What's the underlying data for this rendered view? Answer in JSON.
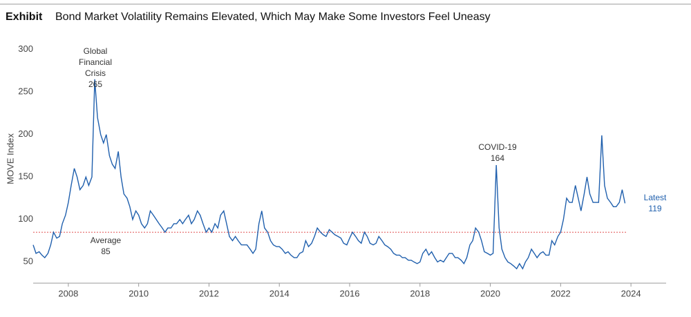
{
  "chart_data": {
    "type": "line",
    "exhibit": "Exhibit",
    "title": "Bond Market Volatility Remains Elevated, Which May Make Some Investors Feel Uneasy",
    "y_label": "MOVE Index",
    "xlim": [
      2007,
      2025
    ],
    "xticks": [
      2008,
      2010,
      2012,
      2014,
      2016,
      2018,
      2020,
      2022,
      2024
    ],
    "ylim": [
      25,
      325
    ],
    "yticks": [
      50,
      100,
      150,
      200,
      250,
      300
    ],
    "grid": false,
    "x": [
      2007.0,
      2007.08,
      2007.17,
      2007.25,
      2007.33,
      2007.42,
      2007.5,
      2007.58,
      2007.67,
      2007.75,
      2007.83,
      2007.92,
      2008.0,
      2008.08,
      2008.17,
      2008.25,
      2008.33,
      2008.42,
      2008.5,
      2008.58,
      2008.67,
      2008.75,
      2008.83,
      2008.92,
      2009.0,
      2009.08,
      2009.17,
      2009.25,
      2009.33,
      2009.42,
      2009.5,
      2009.58,
      2009.67,
      2009.75,
      2009.83,
      2009.92,
      2010.0,
      2010.08,
      2010.17,
      2010.25,
      2010.33,
      2010.42,
      2010.5,
      2010.58,
      2010.67,
      2010.75,
      2010.83,
      2010.92,
      2011.0,
      2011.08,
      2011.17,
      2011.25,
      2011.33,
      2011.42,
      2011.5,
      2011.58,
      2011.67,
      2011.75,
      2011.83,
      2011.92,
      2012.0,
      2012.08,
      2012.17,
      2012.25,
      2012.33,
      2012.42,
      2012.5,
      2012.58,
      2012.67,
      2012.75,
      2012.83,
      2012.92,
      2013.0,
      2013.08,
      2013.17,
      2013.25,
      2013.33,
      2013.42,
      2013.5,
      2013.58,
      2013.67,
      2013.75,
      2013.83,
      2013.92,
      2014.0,
      2014.08,
      2014.17,
      2014.25,
      2014.33,
      2014.42,
      2014.5,
      2014.58,
      2014.67,
      2014.75,
      2014.83,
      2014.92,
      2015.0,
      2015.08,
      2015.17,
      2015.25,
      2015.33,
      2015.42,
      2015.5,
      2015.58,
      2015.67,
      2015.75,
      2015.83,
      2015.92,
      2016.0,
      2016.08,
      2016.17,
      2016.25,
      2016.33,
      2016.42,
      2016.5,
      2016.58,
      2016.67,
      2016.75,
      2016.83,
      2016.92,
      2017.0,
      2017.08,
      2017.17,
      2017.25,
      2017.33,
      2017.42,
      2017.5,
      2017.58,
      2017.67,
      2017.75,
      2017.83,
      2017.92,
      2018.0,
      2018.08,
      2018.17,
      2018.25,
      2018.33,
      2018.42,
      2018.5,
      2018.58,
      2018.67,
      2018.75,
      2018.83,
      2018.92,
      2019.0,
      2019.08,
      2019.17,
      2019.25,
      2019.33,
      2019.42,
      2019.5,
      2019.58,
      2019.67,
      2019.75,
      2019.83,
      2019.92,
      2020.0,
      2020.08,
      2020.17,
      2020.25,
      2020.33,
      2020.42,
      2020.5,
      2020.58,
      2020.67,
      2020.75,
      2020.83,
      2020.92,
      2021.0,
      2021.08,
      2021.17,
      2021.25,
      2021.33,
      2021.42,
      2021.5,
      2021.58,
      2021.67,
      2021.75,
      2021.83,
      2021.92,
      2022.0,
      2022.08,
      2022.17,
      2022.25,
      2022.33,
      2022.42,
      2022.5,
      2022.58,
      2022.67,
      2022.75,
      2022.83,
      2022.92,
      2023.0,
      2023.08,
      2023.17,
      2023.25,
      2023.33,
      2023.42,
      2023.5,
      2023.58,
      2023.67,
      2023.75,
      2023.83
    ],
    "series": [
      {
        "name": "MOVE Index",
        "color": "#1f5fad",
        "values": [
          70,
          60,
          62,
          58,
          55,
          60,
          70,
          85,
          78,
          80,
          95,
          105,
          120,
          140,
          160,
          150,
          135,
          140,
          150,
          140,
          150,
          265,
          220,
          200,
          190,
          200,
          175,
          165,
          160,
          180,
          150,
          130,
          125,
          115,
          100,
          110,
          105,
          95,
          90,
          95,
          110,
          105,
          100,
          95,
          90,
          85,
          90,
          90,
          95,
          95,
          100,
          95,
          100,
          105,
          95,
          100,
          110,
          105,
          95,
          85,
          90,
          85,
          95,
          90,
          105,
          110,
          95,
          80,
          75,
          80,
          75,
          70,
          70,
          70,
          65,
          60,
          65,
          95,
          110,
          90,
          85,
          75,
          70,
          68,
          68,
          65,
          60,
          62,
          58,
          55,
          55,
          60,
          62,
          75,
          68,
          72,
          80,
          90,
          85,
          82,
          80,
          88,
          85,
          82,
          80,
          78,
          72,
          70,
          78,
          85,
          80,
          75,
          72,
          85,
          80,
          72,
          70,
          72,
          80,
          75,
          70,
          68,
          65,
          60,
          58,
          58,
          55,
          55,
          52,
          52,
          50,
          48,
          50,
          60,
          65,
          58,
          62,
          55,
          50,
          52,
          50,
          55,
          60,
          60,
          55,
          55,
          52,
          48,
          55,
          70,
          75,
          90,
          85,
          75,
          62,
          60,
          58,
          60,
          164,
          90,
          65,
          55,
          50,
          48,
          45,
          42,
          48,
          42,
          50,
          55,
          65,
          60,
          55,
          60,
          62,
          58,
          58,
          75,
          70,
          80,
          85,
          100,
          125,
          120,
          120,
          140,
          125,
          110,
          130,
          150,
          130,
          120,
          120,
          120,
          199,
          140,
          125,
          120,
          115,
          115,
          120,
          135,
          119
        ]
      }
    ],
    "average": {
      "label": "Average",
      "value": 85,
      "color": "#e05050"
    },
    "annotations": [
      {
        "label": "Global Financial Crisis",
        "value": 265
      },
      {
        "label": "COVID-19",
        "value": 164
      },
      {
        "label": "Latest",
        "value": 119
      }
    ]
  }
}
